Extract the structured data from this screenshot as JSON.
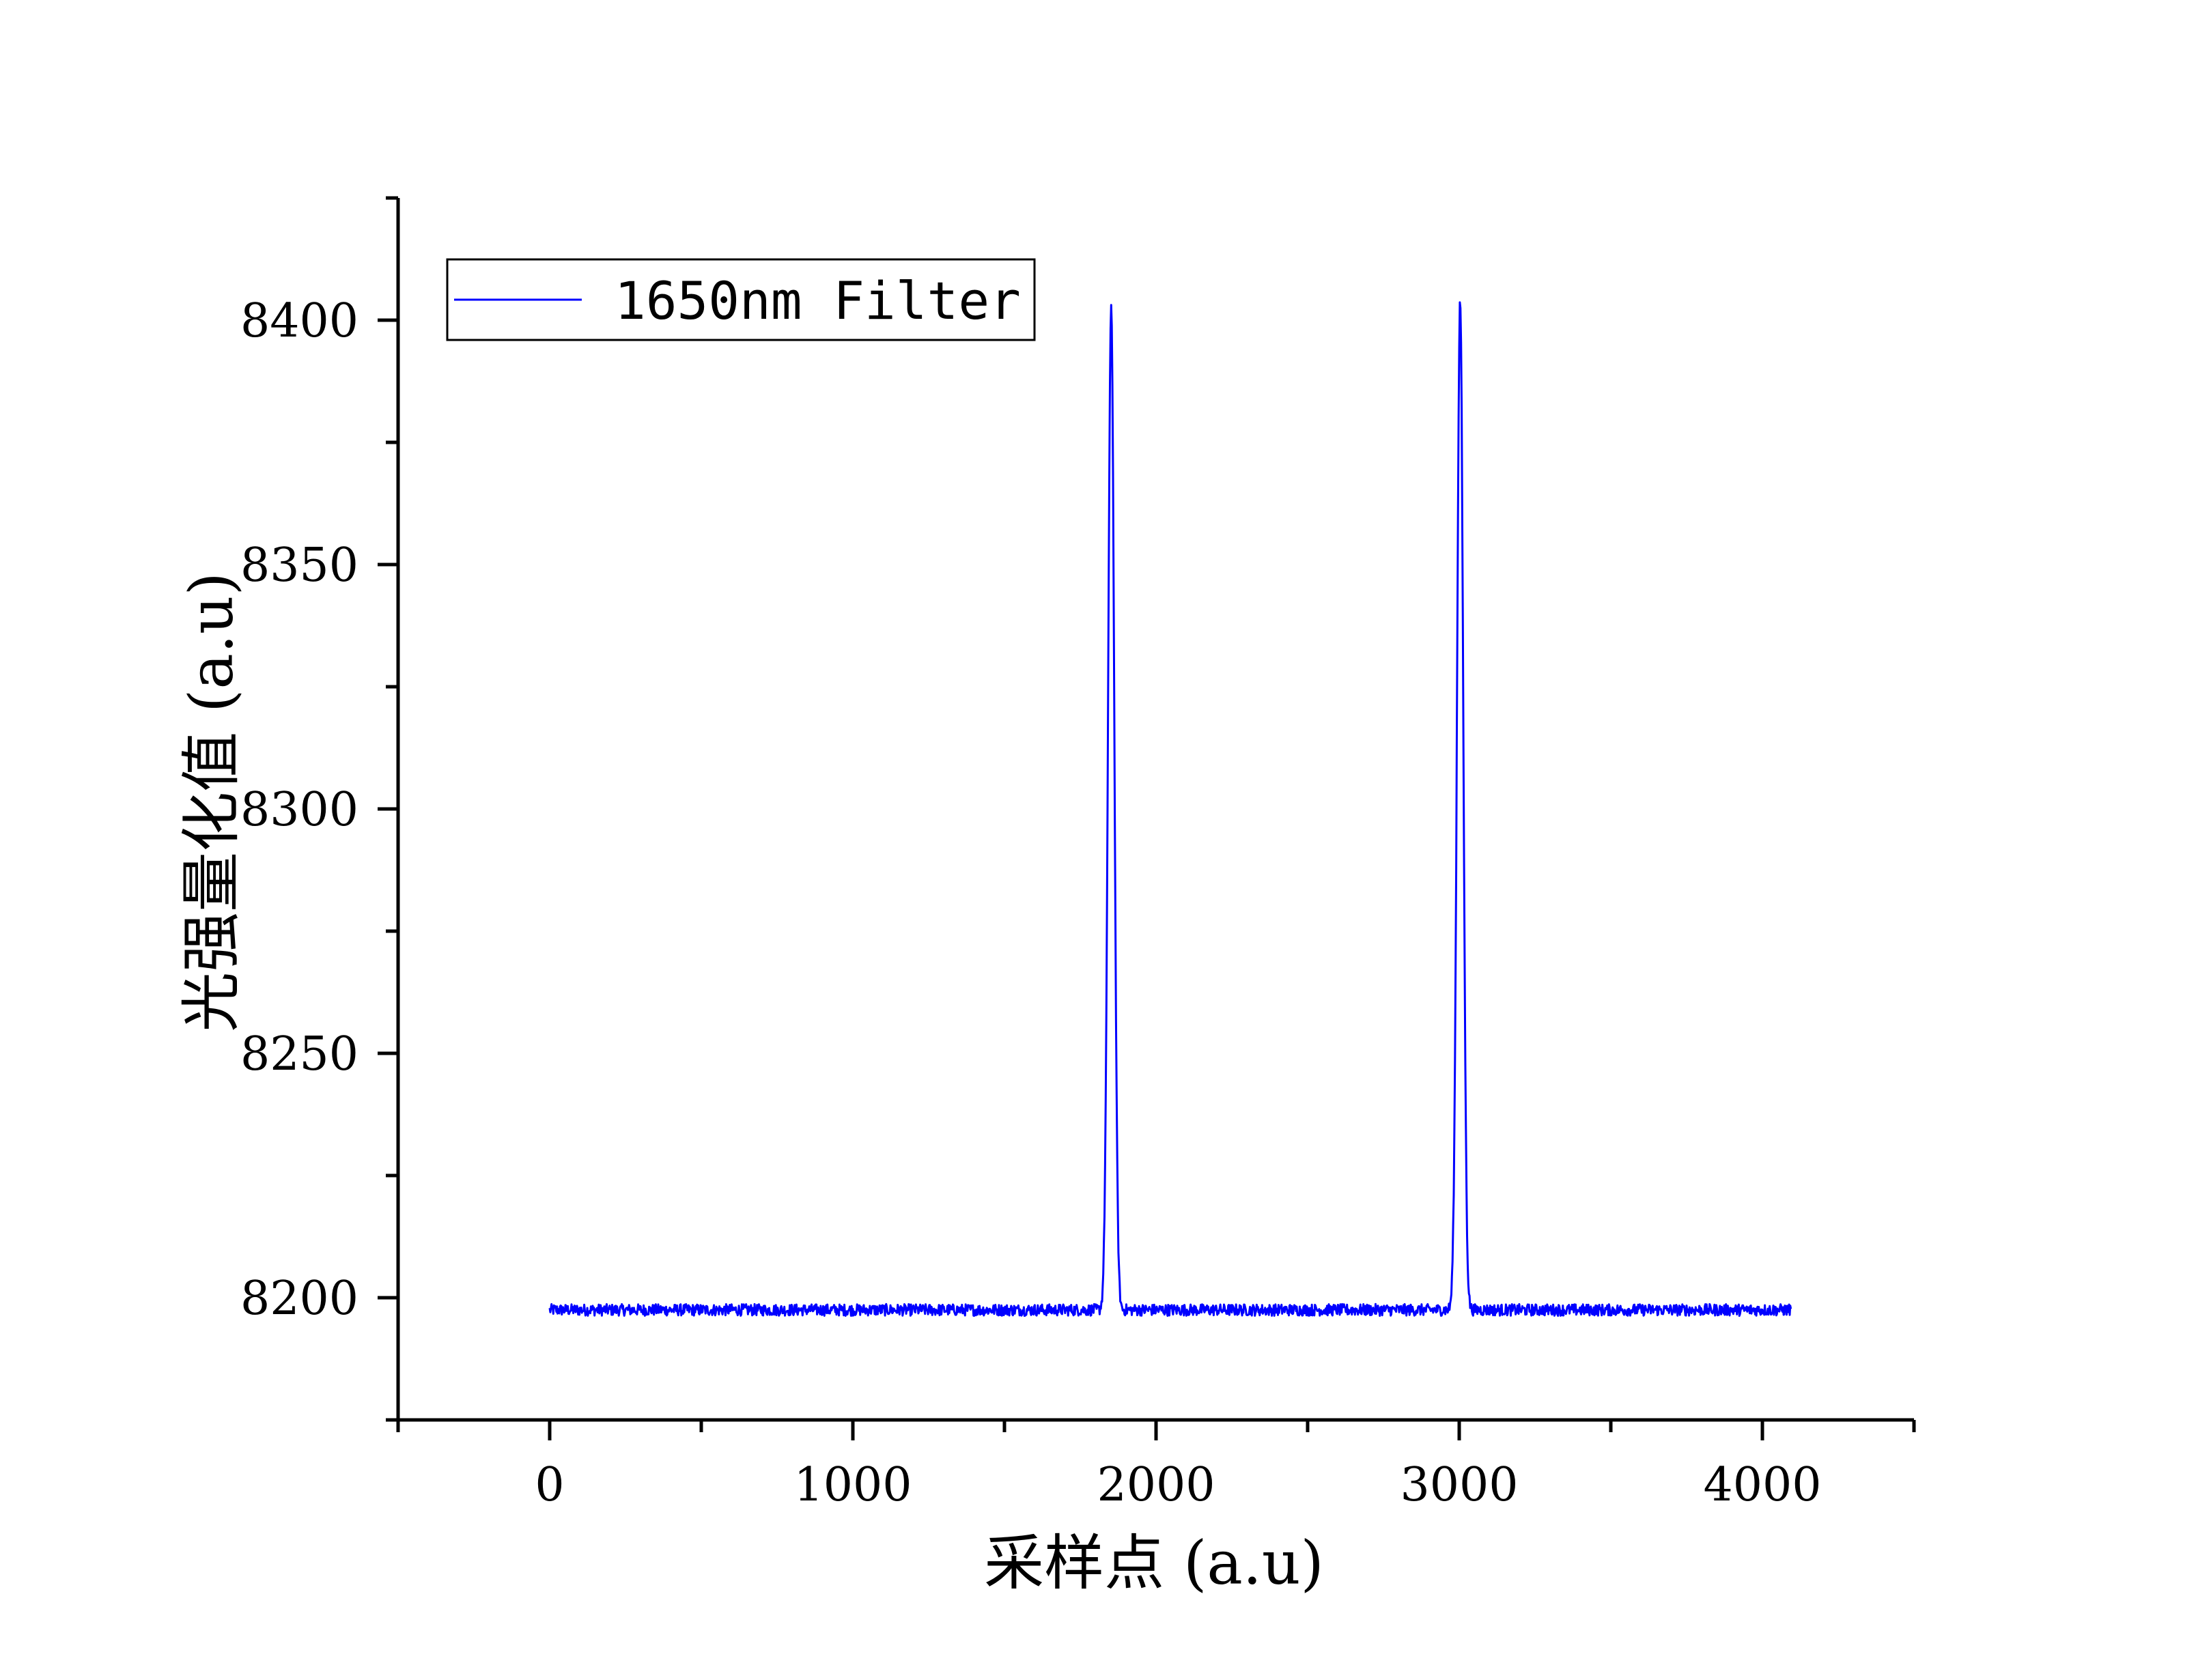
{
  "chart_data": {
    "type": "line",
    "xlabel": "采样点 (a.u)",
    "ylabel": "光强量化值 (a.u)",
    "xlim": [
      -500,
      4500
    ],
    "ylim": [
      8175,
      8425
    ],
    "xticks": [
      0,
      1000,
      2000,
      3000,
      4000
    ],
    "xtick_labels": [
      "0",
      "1000",
      "2000",
      "3000",
      "4000"
    ],
    "x_minor_step": 500,
    "yticks": [
      8200,
      8250,
      8300,
      8350,
      8400
    ],
    "ytick_labels": [
      "8200",
      "8250",
      "8300",
      "8350",
      "8400"
    ],
    "y_minor_step": 25,
    "grid": false,
    "legend_position": "top-left",
    "series": [
      {
        "name": "1650nm Filter",
        "color": "#0000ff",
        "x_range": [
          0,
          4095
        ],
        "baseline": 8197.5,
        "noise_amplitude": 1.2,
        "peaks": [
          {
            "center": 1852,
            "peak_value": 8402,
            "fwhm": 24
          },
          {
            "center": 3003,
            "peak_value": 8404,
            "fwhm": 24
          }
        ],
        "sample_points": [
          {
            "x": 0,
            "y": 8197
          },
          {
            "x": 500,
            "y": 8198
          },
          {
            "x": 1000,
            "y": 8197.5
          },
          {
            "x": 1500,
            "y": 8198
          },
          {
            "x": 1760,
            "y": 8198
          },
          {
            "x": 1820,
            "y": 8215
          },
          {
            "x": 1852,
            "y": 8402
          },
          {
            "x": 1885,
            "y": 8212
          },
          {
            "x": 1950,
            "y": 8198
          },
          {
            "x": 2500,
            "y": 8198
          },
          {
            "x": 2920,
            "y": 8198
          },
          {
            "x": 2970,
            "y": 8215
          },
          {
            "x": 3003,
            "y": 8404
          },
          {
            "x": 3035,
            "y": 8212
          },
          {
            "x": 3100,
            "y": 8198
          },
          {
            "x": 3500,
            "y": 8197.5
          },
          {
            "x": 4095,
            "y": 8197
          }
        ]
      }
    ]
  }
}
